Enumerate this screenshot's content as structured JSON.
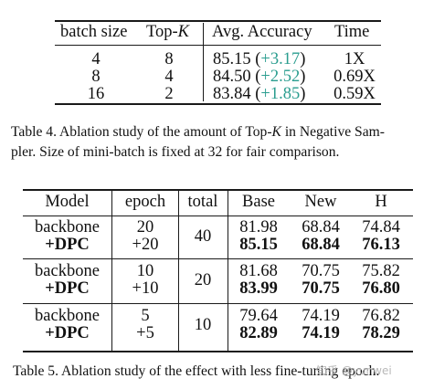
{
  "table4": {
    "header": {
      "batch_size": "batch size",
      "topk_prefix": "Top-",
      "topk_var": "K",
      "acc": "Avg. Accuracy",
      "time": "Time"
    },
    "rows": [
      {
        "batch": "4",
        "topk": "8",
        "acc": "85.15",
        "gain": "+3.17",
        "time": "1X"
      },
      {
        "batch": "8",
        "topk": "4",
        "acc": "84.50",
        "gain": "+2.52",
        "time": "0.69X"
      },
      {
        "batch": "16",
        "topk": "2",
        "acc": "83.84",
        "gain": "+1.85",
        "time": "0.59X"
      }
    ],
    "caption": {
      "line1_pre": "Table 4. Ablation study of the amount of Top-",
      "line1_var": "K",
      "line1_post": " in Negative Sam-",
      "line2": "pler. Size of mini-batch is fixed at 32 for fair comparison."
    }
  },
  "table5": {
    "header": {
      "model": "Model",
      "epoch": "epoch",
      "total": "total",
      "base": "Base",
      "new": "New",
      "h": "H"
    },
    "groups": [
      {
        "total": "40",
        "rows": [
          {
            "model": "backbone",
            "epoch": "20",
            "base": "81.98",
            "new": "68.84",
            "h": "74.84"
          },
          {
            "model": "+DPC",
            "epoch": "+20",
            "base": "85.15",
            "new": "68.84",
            "h": "76.13"
          }
        ]
      },
      {
        "total": "20",
        "rows": [
          {
            "model": "backbone",
            "epoch": "10",
            "base": "81.68",
            "new": "70.75",
            "h": "75.82"
          },
          {
            "model": "+DPC",
            "epoch": "+10",
            "base": "83.99",
            "new": "70.75",
            "h": "76.80"
          }
        ]
      },
      {
        "total": "10",
        "rows": [
          {
            "model": "backbone",
            "epoch": "5",
            "base": "79.64",
            "new": "74.19",
            "h": "76.82"
          },
          {
            "model": "+DPC",
            "epoch": "+5",
            "base": "82.89",
            "new": "74.19",
            "h": "78.29"
          }
        ]
      }
    ],
    "caption": "Table 5. Ablation study of the effect with less fine-tuning epoch."
  },
  "watermark": "知乎 @yunwei",
  "colors": {
    "gain": "#2a9d8f",
    "text": "#111111"
  }
}
